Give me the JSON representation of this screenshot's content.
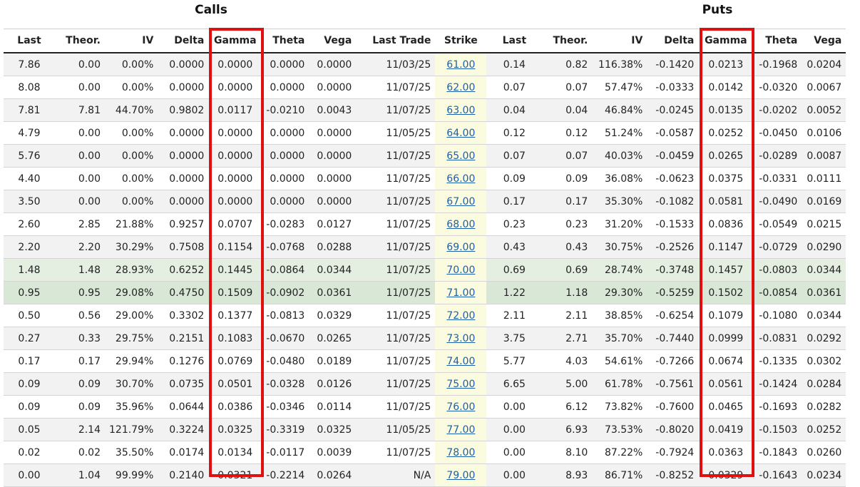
{
  "titles": {
    "calls": "Calls",
    "puts": "Puts"
  },
  "columns": [
    {
      "key": "call_last",
      "label": "Last",
      "align": "ctr"
    },
    {
      "key": "call_theor",
      "label": "Theor.",
      "align": "num"
    },
    {
      "key": "call_iv",
      "label": "IV",
      "align": "num"
    },
    {
      "key": "call_delta",
      "label": "Delta",
      "align": "num"
    },
    {
      "key": "call_gamma",
      "label": "Gamma",
      "align": "ctr"
    },
    {
      "key": "call_theta",
      "label": "Theta",
      "align": "num"
    },
    {
      "key": "call_vega",
      "label": "Vega",
      "align": "num"
    },
    {
      "key": "last_trade",
      "label": "Last Trade",
      "align": "num"
    },
    {
      "key": "strike",
      "label": "Strike",
      "align": "ctr"
    },
    {
      "key": "put_last",
      "label": "Last",
      "align": "ctr"
    },
    {
      "key": "put_theor",
      "label": "Theor.",
      "align": "num"
    },
    {
      "key": "put_iv",
      "label": "IV",
      "align": "num"
    },
    {
      "key": "put_delta",
      "label": "Delta",
      "align": "num"
    },
    {
      "key": "put_gamma",
      "label": "Gamma",
      "align": "ctr"
    },
    {
      "key": "put_theta",
      "label": "Theta",
      "align": "num"
    },
    {
      "key": "put_vega",
      "label": "Vega",
      "align": "num"
    }
  ],
  "rows": [
    {
      "cells": [
        "7.86",
        "0.00",
        "0.00%",
        "0.0000",
        "0.0000",
        "0.0000",
        "0.0000",
        "11/03/25",
        "61.00",
        "0.14",
        "0.82",
        "116.38%",
        "-0.1420",
        "0.0213",
        "-0.1968",
        "0.0204"
      ]
    },
    {
      "cells": [
        "8.08",
        "0.00",
        "0.00%",
        "0.0000",
        "0.0000",
        "0.0000",
        "0.0000",
        "11/07/25",
        "62.00",
        "0.07",
        "0.07",
        "57.47%",
        "-0.0333",
        "0.0142",
        "-0.0320",
        "0.0067"
      ]
    },
    {
      "cells": [
        "7.81",
        "7.81",
        "44.70%",
        "0.9802",
        "0.0117",
        "-0.0210",
        "0.0043",
        "11/07/25",
        "63.00",
        "0.04",
        "0.04",
        "46.84%",
        "-0.0245",
        "0.0135",
        "-0.0202",
        "0.0052"
      ]
    },
    {
      "cells": [
        "4.79",
        "0.00",
        "0.00%",
        "0.0000",
        "0.0000",
        "0.0000",
        "0.0000",
        "11/05/25",
        "64.00",
        "0.12",
        "0.12",
        "51.24%",
        "-0.0587",
        "0.0252",
        "-0.0450",
        "0.0106"
      ]
    },
    {
      "cells": [
        "5.76",
        "0.00",
        "0.00%",
        "0.0000",
        "0.0000",
        "0.0000",
        "0.0000",
        "11/07/25",
        "65.00",
        "0.07",
        "0.07",
        "40.03%",
        "-0.0459",
        "0.0265",
        "-0.0289",
        "0.0087"
      ]
    },
    {
      "cells": [
        "4.40",
        "0.00",
        "0.00%",
        "0.0000",
        "0.0000",
        "0.0000",
        "0.0000",
        "11/07/25",
        "66.00",
        "0.09",
        "0.09",
        "36.08%",
        "-0.0623",
        "0.0375",
        "-0.0331",
        "0.0111"
      ]
    },
    {
      "cells": [
        "3.50",
        "0.00",
        "0.00%",
        "0.0000",
        "0.0000",
        "0.0000",
        "0.0000",
        "11/07/25",
        "67.00",
        "0.17",
        "0.17",
        "35.30%",
        "-0.1082",
        "0.0581",
        "-0.0490",
        "0.0169"
      ]
    },
    {
      "cells": [
        "2.60",
        "2.85",
        "21.88%",
        "0.9257",
        "0.0707",
        "-0.0283",
        "0.0127",
        "11/07/25",
        "68.00",
        "0.23",
        "0.23",
        "31.20%",
        "-0.1533",
        "0.0836",
        "-0.0549",
        "0.0215"
      ]
    },
    {
      "cells": [
        "2.20",
        "2.20",
        "30.29%",
        "0.7508",
        "0.1154",
        "-0.0768",
        "0.0288",
        "11/07/25",
        "69.00",
        "0.43",
        "0.43",
        "30.75%",
        "-0.2526",
        "0.1147",
        "-0.0729",
        "0.0290"
      ]
    },
    {
      "highlight": "atm-a",
      "cells": [
        "1.48",
        "1.48",
        "28.93%",
        "0.6252",
        "0.1445",
        "-0.0864",
        "0.0344",
        "11/07/25",
        "70.00",
        "0.69",
        "0.69",
        "28.74%",
        "-0.3748",
        "0.1457",
        "-0.0803",
        "0.0344"
      ]
    },
    {
      "highlight": "atm-b",
      "cells": [
        "0.95",
        "0.95",
        "29.08%",
        "0.4750",
        "0.1509",
        "-0.0902",
        "0.0361",
        "11/07/25",
        "71.00",
        "1.22",
        "1.18",
        "29.30%",
        "-0.5259",
        "0.1502",
        "-0.0854",
        "0.0361"
      ]
    },
    {
      "cells": [
        "0.50",
        "0.56",
        "29.00%",
        "0.3302",
        "0.1377",
        "-0.0813",
        "0.0329",
        "11/07/25",
        "72.00",
        "2.11",
        "2.11",
        "38.85%",
        "-0.6254",
        "0.1079",
        "-0.1080",
        "0.0344"
      ]
    },
    {
      "cells": [
        "0.27",
        "0.33",
        "29.75%",
        "0.2151",
        "0.1083",
        "-0.0670",
        "0.0265",
        "11/07/25",
        "73.00",
        "3.75",
        "2.71",
        "35.70%",
        "-0.7440",
        "0.0999",
        "-0.0831",
        "0.0292"
      ]
    },
    {
      "cells": [
        "0.17",
        "0.17",
        "29.94%",
        "0.1276",
        "0.0769",
        "-0.0480",
        "0.0189",
        "11/07/25",
        "74.00",
        "5.77",
        "4.03",
        "54.61%",
        "-0.7266",
        "0.0674",
        "-0.1335",
        "0.0302"
      ]
    },
    {
      "cells": [
        "0.09",
        "0.09",
        "30.70%",
        "0.0735",
        "0.0501",
        "-0.0328",
        "0.0126",
        "11/07/25",
        "75.00",
        "6.65",
        "5.00",
        "61.78%",
        "-0.7561",
        "0.0561",
        "-0.1424",
        "0.0284"
      ]
    },
    {
      "cells": [
        "0.09",
        "0.09",
        "35.96%",
        "0.0644",
        "0.0386",
        "-0.0346",
        "0.0114",
        "11/07/25",
        "76.00",
        "0.00",
        "6.12",
        "73.82%",
        "-0.7600",
        "0.0465",
        "-0.1693",
        "0.0282"
      ]
    },
    {
      "cells": [
        "0.05",
        "2.14",
        "121.79%",
        "0.3224",
        "0.0325",
        "-0.3319",
        "0.0325",
        "11/05/25",
        "77.00",
        "0.00",
        "6.93",
        "73.53%",
        "-0.8020",
        "0.0419",
        "-0.1503",
        "0.0252"
      ]
    },
    {
      "cells": [
        "0.02",
        "0.02",
        "35.50%",
        "0.0174",
        "0.0134",
        "-0.0117",
        "0.0039",
        "11/07/25",
        "78.00",
        "0.00",
        "8.10",
        "87.22%",
        "-0.7924",
        "0.0363",
        "-0.1843",
        "0.0260"
      ]
    },
    {
      "cells": [
        "0.00",
        "1.04",
        "99.99%",
        "0.2140",
        "0.0321",
        "-0.2214",
        "0.0264",
        "N/A",
        "79.00",
        "0.00",
        "8.93",
        "86.71%",
        "-0.8252",
        "0.0329",
        "-0.1643",
        "0.0234"
      ]
    }
  ],
  "colors": {
    "highlight_box": "#e01010",
    "strike_bg": "#fbfbdf",
    "link": "#1f5fa8",
    "atm_row": "#e4efe2"
  }
}
